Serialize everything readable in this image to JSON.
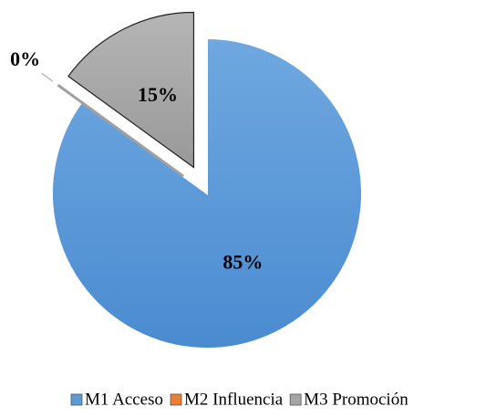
{
  "chart_data": {
    "type": "pie",
    "categories": [
      "M1 Acceso",
      "M2 Influencia",
      "M3 Promoción"
    ],
    "values": [
      85,
      0,
      15
    ],
    "value_labels": [
      "85%",
      "0%",
      "15%"
    ],
    "colors": [
      "#5b9bd5",
      "#ed7d31",
      "#a5a5a5"
    ],
    "legend": "bottom"
  }
}
